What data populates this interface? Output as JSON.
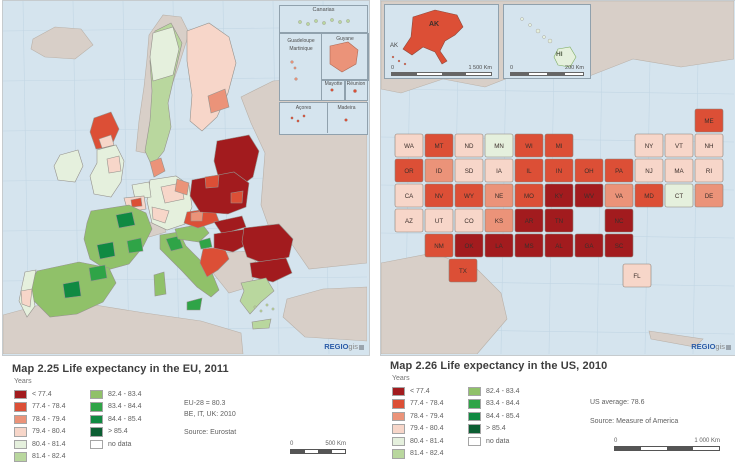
{
  "colors": {
    "sea": "#d5e4ee",
    "land_other": "#d8cfc8",
    "land_other_border": "#b9b1a9",
    "graticule": "#c2d6e4",
    "region_border": "#96938e",
    "watermark_blue": "#2b5ca8",
    "categories": {
      "c1": "#a21b1e",
      "c2": "#dc4f36",
      "c3": "#eb9379",
      "c4": "#f7d6c9",
      "c5": "#e5f0dd",
      "c6": "#b9d79e",
      "c7": "#90c169",
      "c8": "#2fa447",
      "c9": "#108a42",
      "c10": "#0c5e33",
      "nodata": "#ffffff"
    }
  },
  "legend": {
    "title": "Years",
    "items": [
      {
        "label": "< 77.4",
        "color": "c1"
      },
      {
        "label": "77.4 - 78.4",
        "color": "c2"
      },
      {
        "label": "78.4 - 79.4",
        "color": "c3"
      },
      {
        "label": "79.4 - 80.4",
        "color": "c4"
      },
      {
        "label": "80.4 - 81.4",
        "color": "c5"
      },
      {
        "label": "81.4 - 82.4",
        "color": "c6"
      },
      {
        "label": "82.4 - 83.4",
        "color": "c7"
      },
      {
        "label": "83.4 - 84.4",
        "color": "c8"
      },
      {
        "label": "84.4 - 85.4",
        "color": "c9"
      },
      {
        "label": "> 85.4",
        "color": "c10"
      },
      {
        "label": "no data",
        "color": "nodata"
      }
    ]
  },
  "eu_panel": {
    "title": "Map 2.25 Life expectancy in the EU, 2011",
    "note_line1": "EU-28 = 80.3",
    "note_line2": "BE, IT, UK: 2010",
    "source": "Source: Eurostat",
    "scale_zero": "0",
    "scale_label": "500 Km",
    "watermark_bold": "REGIO",
    "watermark_light": "gis",
    "insets": {
      "canarias": "Canarias",
      "guadeloupe": "Guadeloupe",
      "martinique": "Martinique",
      "guyane": "Guyane",
      "mayotte": "Mayotte",
      "reunion": "Réunion",
      "acores": "Açores",
      "madeira": "Madeira"
    },
    "regions": {
      "iceland": "other",
      "norway": "other",
      "east-non-eu": "other",
      "north-africa": "other",
      "turkey": "other",
      "balkans": "other",
      "switzerland": "other",
      "sweden": 6,
      "sweden-north": 5,
      "finland": 4,
      "finland-se": 3,
      "baltics": 1,
      "denmark": 3,
      "scotland": 2,
      "scotland-s": 4,
      "england": 5,
      "england-mid": 4,
      "ireland": 5,
      "germany": 5,
      "germany-c": 4,
      "germany-s": 4,
      "germany-e": 3,
      "netherlands": 5,
      "belgium": 4,
      "belgium-c": 2,
      "france": 7,
      "france-idf": 9,
      "france-sw": 9,
      "france-se": 8,
      "spain": 7,
      "spain-madrid": 9,
      "spain-ne": 8,
      "portugal": 5,
      "portugal-s": 4,
      "italy": 7,
      "italy-n": 8,
      "sicily": 8,
      "sardinia": 7,
      "austria": 7,
      "slovenia": 8,
      "croatia": 2,
      "czechia": 2,
      "czechia-w": 3,
      "poland": 1,
      "poland-nw": 2,
      "poland-e": 2,
      "slovakia": 1,
      "hungary": 1,
      "romania": 1,
      "bulgaria": 1,
      "greece": 6,
      "crete": 6
    }
  },
  "us_panel": {
    "title": "Map 2.26 Life expectancy in the US, 2010",
    "note_line1": "US average: 78.6",
    "source": "Source: Measure of America",
    "scale_zero": "0",
    "scale_label": "1 000 Km",
    "watermark_bold": "REGIO",
    "watermark_light": "gis",
    "insets": {
      "alaska": {
        "label": "AK",
        "side_label": "AK",
        "scale_zero": "0",
        "scale_label": "1 500 Km"
      },
      "hawaii": {
        "label": "HI",
        "scale_zero": "0",
        "scale_label": "200 Km"
      }
    },
    "states": [
      {
        "code": "WA",
        "cat": 4
      },
      {
        "code": "OR",
        "cat": 2
      },
      {
        "code": "CA",
        "cat": 4
      },
      {
        "code": "ID",
        "cat": 3
      },
      {
        "code": "NV",
        "cat": 2
      },
      {
        "code": "MT",
        "cat": 2
      },
      {
        "code": "WY",
        "cat": 2
      },
      {
        "code": "UT",
        "cat": 4
      },
      {
        "code": "CO",
        "cat": 4
      },
      {
        "code": "AZ",
        "cat": 4
      },
      {
        "code": "NM",
        "cat": 2
      },
      {
        "code": "ND",
        "cat": 4
      },
      {
        "code": "SD",
        "cat": 4
      },
      {
        "code": "NE",
        "cat": 3
      },
      {
        "code": "KS",
        "cat": 3
      },
      {
        "code": "OK",
        "cat": 1
      },
      {
        "code": "TX",
        "cat": 2
      },
      {
        "code": "MN",
        "cat": 5
      },
      {
        "code": "IA",
        "cat": 4
      },
      {
        "code": "MO",
        "cat": 2
      },
      {
        "code": "AR",
        "cat": 1
      },
      {
        "code": "LA",
        "cat": 1
      },
      {
        "code": "WI",
        "cat": 2
      },
      {
        "code": "IL",
        "cat": 2
      },
      {
        "code": "MS",
        "cat": 1
      },
      {
        "code": "MI",
        "cat": 2
      },
      {
        "code": "IN",
        "cat": 2
      },
      {
        "code": "KY",
        "cat": 1
      },
      {
        "code": "TN",
        "cat": 1
      },
      {
        "code": "AL",
        "cat": 1
      },
      {
        "code": "OH",
        "cat": 2
      },
      {
        "code": "WV",
        "cat": 1
      },
      {
        "code": "VA",
        "cat": 3
      },
      {
        "code": "NC",
        "cat": 1
      },
      {
        "code": "SC",
        "cat": 1
      },
      {
        "code": "GA",
        "cat": 1
      },
      {
        "code": "FL",
        "cat": 4
      },
      {
        "code": "PA",
        "cat": 2
      },
      {
        "code": "NY",
        "cat": 4
      },
      {
        "code": "NJ",
        "cat": 4
      },
      {
        "code": "VT",
        "cat": 4
      },
      {
        "code": "NH",
        "cat": 4
      },
      {
        "code": "MA",
        "cat": 4
      },
      {
        "code": "CT",
        "cat": 5
      },
      {
        "code": "RI",
        "cat": 4
      },
      {
        "code": "ME",
        "cat": 2
      },
      {
        "code": "MD",
        "cat": 2
      },
      {
        "code": "DE",
        "cat": 3
      },
      {
        "code": "AK",
        "cat": 2
      },
      {
        "code": "HI",
        "cat": 5
      }
    ]
  }
}
